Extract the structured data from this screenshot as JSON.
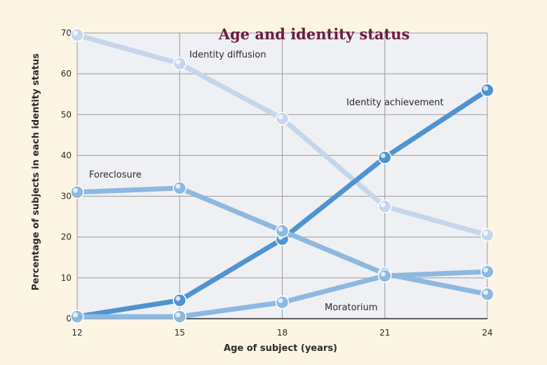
{
  "chart_data": {
    "type": "line",
    "title": "Age and identity status",
    "xlabel": "Age of subject (years)",
    "ylabel": "Percentage of subjects in each identity status",
    "x": [
      12,
      15,
      18,
      21,
      24
    ],
    "xlim": [
      12,
      24
    ],
    "ylim": [
      0,
      70
    ],
    "yticks": [
      0,
      10,
      20,
      30,
      40,
      50,
      60,
      70
    ],
    "xtick_labels": [
      "12",
      "15",
      "18",
      "21",
      "24"
    ],
    "ytick_labels": [
      "0",
      "10",
      "20",
      "30",
      "40",
      "50",
      "60",
      "70"
    ],
    "grid": true,
    "legend": "none (series labeled directly on lines)",
    "series": [
      {
        "name": "Identity diffusion",
        "values": [
          69.5,
          62.5,
          49,
          27.5,
          20.5
        ],
        "color": "#c5d6ea"
      },
      {
        "name": "Identity achievement",
        "values": [
          0.5,
          4.5,
          19.5,
          39.5,
          56
        ],
        "color": "#4f93cf"
      },
      {
        "name": "Foreclosure",
        "values": [
          31,
          32,
          21.5,
          11,
          6
        ],
        "color": "#8db8e0"
      },
      {
        "name": "Moratorium",
        "values": [
          0.5,
          0.5,
          4,
          10.5,
          11.5
        ],
        "color": "#8db8e0"
      }
    ]
  },
  "colors": {
    "background": "#fdf5e4",
    "plot_background": "#eef0f3",
    "grid": "#9a9a9a",
    "title": "#6e1a3e"
  }
}
